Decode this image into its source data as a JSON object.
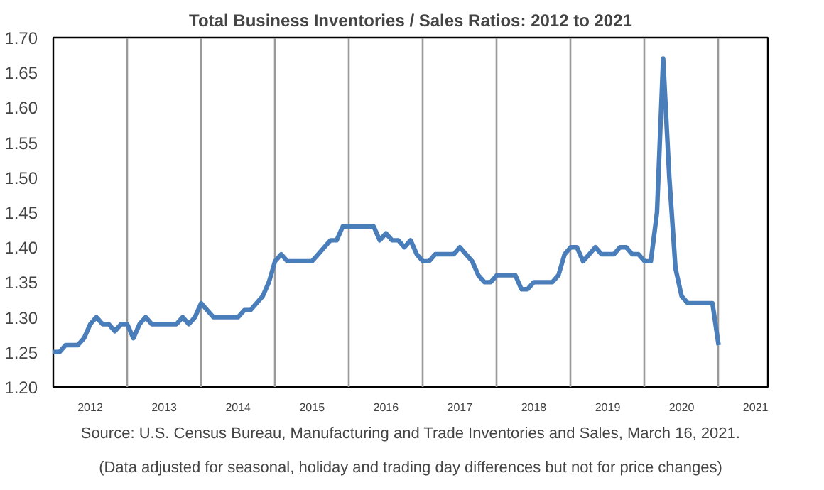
{
  "chart_data": {
    "type": "line",
    "title": "Total Business Inventories / Sales Ratios: 2012 to 2021",
    "annotations": [
      "Source: U.S. Census Bureau, Manufacturing and Trade Inventories and Sales, March 16, 2021.",
      "(Data adjusted for seasonal, holiday and trading day differences but not for price changes)"
    ],
    "x": [
      "2012-01",
      "2012-02",
      "2012-03",
      "2012-04",
      "2012-05",
      "2012-06",
      "2012-07",
      "2012-08",
      "2012-09",
      "2012-10",
      "2012-11",
      "2012-12",
      "2013-01",
      "2013-02",
      "2013-03",
      "2013-04",
      "2013-05",
      "2013-06",
      "2013-07",
      "2013-08",
      "2013-09",
      "2013-10",
      "2013-11",
      "2013-12",
      "2014-01",
      "2014-02",
      "2014-03",
      "2014-04",
      "2014-05",
      "2014-06",
      "2014-07",
      "2014-08",
      "2014-09",
      "2014-10",
      "2014-11",
      "2014-12",
      "2015-01",
      "2015-02",
      "2015-03",
      "2015-04",
      "2015-05",
      "2015-06",
      "2015-07",
      "2015-08",
      "2015-09",
      "2015-10",
      "2015-11",
      "2015-12",
      "2016-01",
      "2016-02",
      "2016-03",
      "2016-04",
      "2016-05",
      "2016-06",
      "2016-07",
      "2016-08",
      "2016-09",
      "2016-10",
      "2016-11",
      "2016-12",
      "2017-01",
      "2017-02",
      "2017-03",
      "2017-04",
      "2017-05",
      "2017-06",
      "2017-07",
      "2017-08",
      "2017-09",
      "2017-10",
      "2017-11",
      "2017-12",
      "2018-01",
      "2018-02",
      "2018-03",
      "2018-04",
      "2018-05",
      "2018-06",
      "2018-07",
      "2018-08",
      "2018-09",
      "2018-10",
      "2018-11",
      "2018-12",
      "2019-01",
      "2019-02",
      "2019-03",
      "2019-04",
      "2019-05",
      "2019-06",
      "2019-07",
      "2019-08",
      "2019-09",
      "2019-10",
      "2019-11",
      "2019-12",
      "2020-01",
      "2020-02",
      "2020-03",
      "2020-04",
      "2020-05",
      "2020-06",
      "2020-07",
      "2020-08",
      "2020-09",
      "2020-10",
      "2020-11",
      "2020-12",
      "2021-01"
    ],
    "series": [
      {
        "color": "#4a7ebb",
        "values": [
          1.25,
          1.25,
          1.26,
          1.26,
          1.26,
          1.27,
          1.29,
          1.3,
          1.29,
          1.29,
          1.28,
          1.29,
          1.29,
          1.27,
          1.29,
          1.3,
          1.29,
          1.29,
          1.29,
          1.29,
          1.29,
          1.3,
          1.29,
          1.3,
          1.32,
          1.31,
          1.3,
          1.3,
          1.3,
          1.3,
          1.3,
          1.31,
          1.31,
          1.32,
          1.33,
          1.35,
          1.38,
          1.39,
          1.38,
          1.38,
          1.38,
          1.38,
          1.38,
          1.39,
          1.4,
          1.41,
          1.41,
          1.43,
          1.43,
          1.43,
          1.43,
          1.43,
          1.43,
          1.41,
          1.42,
          1.41,
          1.41,
          1.4,
          1.41,
          1.39,
          1.38,
          1.38,
          1.39,
          1.39,
          1.39,
          1.39,
          1.4,
          1.39,
          1.38,
          1.36,
          1.35,
          1.35,
          1.36,
          1.36,
          1.36,
          1.36,
          1.34,
          1.34,
          1.35,
          1.35,
          1.35,
          1.35,
          1.36,
          1.39,
          1.4,
          1.4,
          1.38,
          1.39,
          1.4,
          1.39,
          1.39,
          1.39,
          1.4,
          1.4,
          1.39,
          1.39,
          1.38,
          1.38,
          1.45,
          1.67,
          1.5,
          1.37,
          1.33,
          1.32,
          1.32,
          1.32,
          1.32,
          1.32,
          1.26
        ]
      }
    ],
    "xlim": [
      "2012-01",
      "2021-09"
    ],
    "xticks": [
      {
        "value": "2012-07",
        "label": "2012"
      },
      {
        "value": "2013-01",
        "label": null
      },
      {
        "value": "2013-07",
        "label": "2013"
      },
      {
        "value": "2014-01",
        "label": null
      },
      {
        "value": "2014-07",
        "label": "2014"
      },
      {
        "value": "2015-01",
        "label": null
      },
      {
        "value": "2015-07",
        "label": "2015"
      },
      {
        "value": "2016-01",
        "label": null
      },
      {
        "value": "2016-07",
        "label": "2016"
      },
      {
        "value": "2017-01",
        "label": null
      },
      {
        "value": "2017-07",
        "label": "2017"
      },
      {
        "value": "2018-01",
        "label": null
      },
      {
        "value": "2018-07",
        "label": "2018"
      },
      {
        "value": "2019-01",
        "label": null
      },
      {
        "value": "2019-07",
        "label": "2019"
      },
      {
        "value": "2020-01",
        "label": null
      },
      {
        "value": "2020-07",
        "label": "2020"
      },
      {
        "value": "2021-01",
        "label": null
      },
      {
        "value": "2021-07",
        "label": "2021"
      }
    ],
    "ylim": [
      1.2,
      1.7
    ],
    "yticks": [
      {
        "value": 1.2,
        "label": "1.20"
      },
      {
        "value": 1.25,
        "label": "1.25"
      },
      {
        "value": 1.3,
        "label": "1.30"
      },
      {
        "value": 1.35,
        "label": "1.35"
      },
      {
        "value": 1.4,
        "label": "1.40"
      },
      {
        "value": 1.45,
        "label": "1.45"
      },
      {
        "value": 1.5,
        "label": "1.50"
      },
      {
        "value": 1.55,
        "label": "1.55"
      },
      {
        "value": 1.6,
        "label": "1.60"
      },
      {
        "value": 1.65,
        "label": "1.65"
      },
      {
        "value": 1.7,
        "label": "1.70"
      }
    ],
    "grid": "x",
    "marker": "none",
    "line_style": "solid"
  }
}
